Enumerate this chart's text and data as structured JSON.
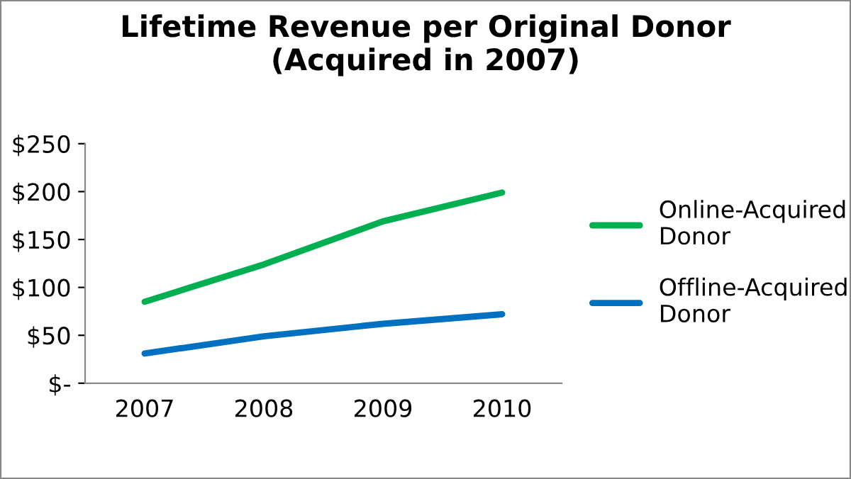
{
  "chart_data": {
    "type": "line",
    "title": "Lifetime Revenue per Original Donor\n(Acquired in 2007)",
    "categories": [
      "2007",
      "2008",
      "2009",
      "2010"
    ],
    "series": [
      {
        "name": "Online-Acquired Donor",
        "color": "#00b050",
        "values": [
          85,
          124,
          169,
          199
        ]
      },
      {
        "name": "Offline-Acquired Donor",
        "color": "#0070c0",
        "values": [
          31,
          49,
          62,
          72
        ]
      }
    ],
    "ylim": [
      0,
      250
    ],
    "yticks": [
      {
        "value": 0,
        "label": "$-"
      },
      {
        "value": 50,
        "label": "$50"
      },
      {
        "value": 100,
        "label": "$100"
      },
      {
        "value": 150,
        "label": "$150"
      },
      {
        "value": 200,
        "label": "$200"
      },
      {
        "value": 250,
        "label": "$250"
      }
    ],
    "grid": false,
    "legend": "right",
    "marker": "none",
    "line_style": "solid"
  }
}
